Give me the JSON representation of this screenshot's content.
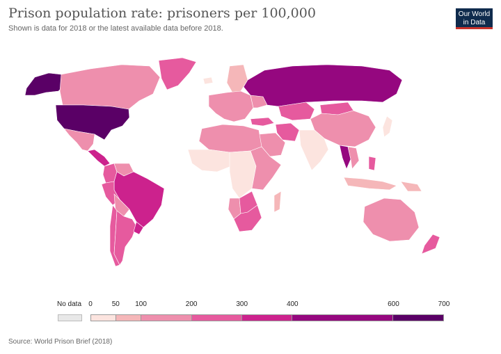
{
  "header": {
    "title": "Prison population rate: prisoners per 100,000",
    "subtitle": "Shown is data for 2018 or the latest available data before 2018."
  },
  "logo": {
    "line1": "Our World",
    "line2": "in Data"
  },
  "legend": {
    "no_data_label": "No data",
    "no_data_color": "#e8e8e8",
    "ticks": [
      "0",
      "50",
      "100",
      "200",
      "300",
      "400",
      "600",
      "700"
    ],
    "bins": [
      {
        "from": 0,
        "to": 50,
        "color": "#fce4df"
      },
      {
        "from": 50,
        "to": 100,
        "color": "#f5b7b9"
      },
      {
        "from": 100,
        "to": 200,
        "color": "#ee8fad"
      },
      {
        "from": 200,
        "to": 300,
        "color": "#e65a9e"
      },
      {
        "from": 300,
        "to": 400,
        "color": "#cc228d"
      },
      {
        "from": 400,
        "to": 600,
        "color": "#95077f"
      },
      {
        "from": 600,
        "to": 700,
        "color": "#5a0066"
      }
    ]
  },
  "regions": [
    {
      "name": "United States",
      "rate": 655
    },
    {
      "name": "Canada",
      "rate": 114
    },
    {
      "name": "Alaska",
      "rate": 655
    },
    {
      "name": "Greenland",
      "rate": 220
    },
    {
      "name": "Mexico",
      "rate": 165
    },
    {
      "name": "Central America",
      "rate": 320
    },
    {
      "name": "Colombia",
      "rate": 240
    },
    {
      "name": "Venezuela",
      "rate": 180
    },
    {
      "name": "Brazil",
      "rate": 324
    },
    {
      "name": "Peru",
      "rate": 280
    },
    {
      "name": "Bolivia",
      "rate": 150
    },
    {
      "name": "Argentina",
      "rate": 200
    },
    {
      "name": "Chile",
      "rate": 230
    },
    {
      "name": "Uruguay",
      "rate": 320
    },
    {
      "name": "Europe",
      "rate": 110
    },
    {
      "name": "Iceland",
      "rate": 37
    },
    {
      "name": "Scandinavia",
      "rate": 80
    },
    {
      "name": "Ukraine",
      "rate": 160
    },
    {
      "name": "Russia",
      "rate": 415
    },
    {
      "name": "Turkey",
      "rate": 290
    },
    {
      "name": "Kazakhstan",
      "rate": 220
    },
    {
      "name": "Mongolia",
      "rate": 260
    },
    {
      "name": "China",
      "rate": 118
    },
    {
      "name": "Iran",
      "rate": 290
    },
    {
      "name": "Saudi Arabia",
      "rate": 160
    },
    {
      "name": "India",
      "rate": 33
    },
    {
      "name": "Thailand",
      "rate": 540
    },
    {
      "name": "Southeast Asia",
      "rate": 150
    },
    {
      "name": "Japan",
      "rate": 41
    },
    {
      "name": "Philippines",
      "rate": 200
    },
    {
      "name": "Indonesia",
      "rate": 90
    },
    {
      "name": "Papua New Guinea",
      "rate": 65
    },
    {
      "name": "North Africa",
      "rate": 120
    },
    {
      "name": "West Africa",
      "rate": 40
    },
    {
      "name": "Central Africa",
      "rate": 40
    },
    {
      "name": "East Africa",
      "rate": 100
    },
    {
      "name": "Namibia",
      "rate": 190
    },
    {
      "name": "South Africa",
      "rate": 280
    },
    {
      "name": "Botswana",
      "rate": 220
    },
    {
      "name": "Madagascar",
      "rate": 80
    },
    {
      "name": "Australia",
      "rate": 172
    },
    {
      "name": "New Zealand",
      "rate": 214
    }
  ],
  "footer": {
    "source": "Source: World Prison Brief (2018)"
  }
}
